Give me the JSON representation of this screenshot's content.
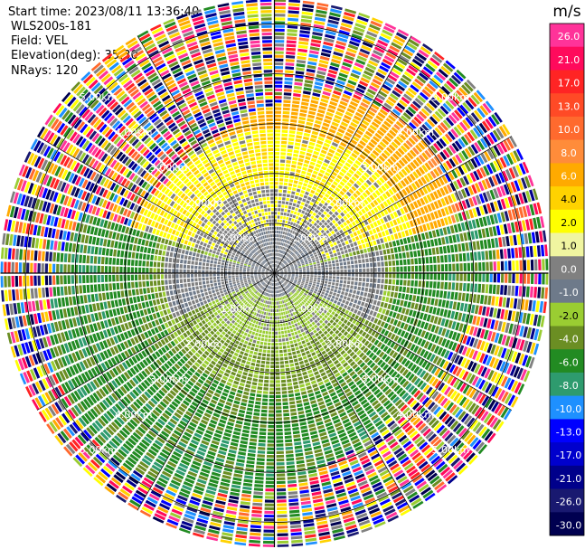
{
  "info": {
    "start_time": "Start time: 2023/08/11 13:36:40",
    "instrument": "WLS200s-181",
    "field": "Field: VEL",
    "elevation": "Elevation(deg): 35.30",
    "nrays": "NRays: 120"
  },
  "colorbar": {
    "unit": "m/s",
    "tick_labels": [
      "26.0",
      "21.0",
      "17.0",
      "13.0",
      "10.0",
      "8.0",
      "6.0",
      "4.0",
      "2.0",
      "1.0",
      "0.0",
      "-1.0",
      "-2.0",
      "-4.0",
      "-6.0",
      "-8.0",
      "-10.0",
      "-13.0",
      "-17.0",
      "-21.0",
      "-26.0",
      "-30.0"
    ],
    "colors": [
      "#ff3399",
      "#ff0a5c",
      "#ff2424",
      "#ff4a26",
      "#ff6a2e",
      "#ff8c3a",
      "#ffaa00",
      "#ffd200",
      "#ffff00",
      "#f0f5a0",
      "#808080",
      "#6e7a8a",
      "#9acd32",
      "#6b8e23",
      "#228b22",
      "#2e9b6e",
      "#1e90ff",
      "#0000ff",
      "#0000cd",
      "#00008b",
      "#191970",
      "#000050"
    ]
  },
  "range_rings": {
    "labels": [
      "1.00km",
      "2.00km",
      "3.00km",
      "4.00km",
      "5.00km"
    ],
    "max_range_km": 5.5
  },
  "scan": {
    "n_rays": 120,
    "gate_spacing_km": 0.075
  }
}
